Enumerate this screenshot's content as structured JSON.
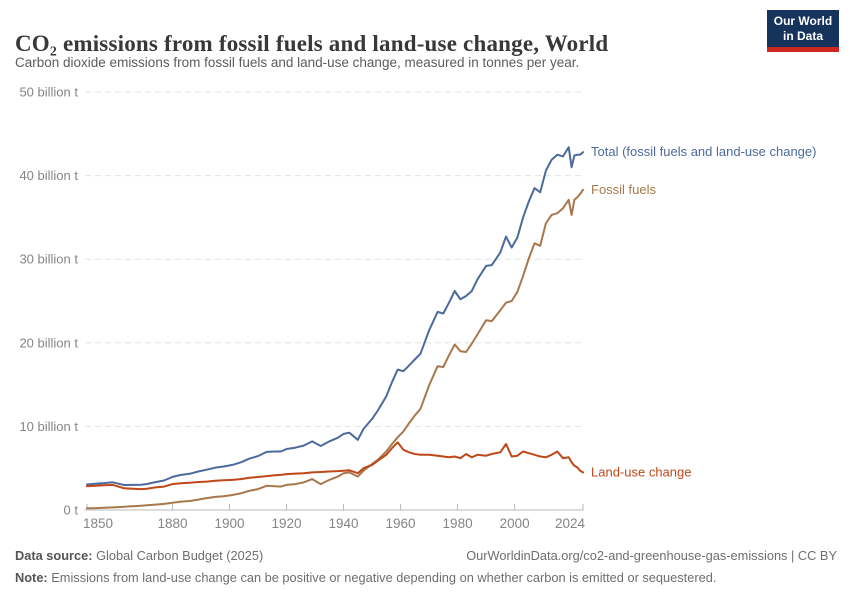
{
  "header": {
    "title": "CO₂ emissions from fossil fuels and land-use change, World",
    "subtitle": "Carbon dioxide emissions from fossil fuels and land-use change, measured in tonnes per year.",
    "logo": {
      "line1": "Our World",
      "line2": "in Data",
      "bg_color": "#15335B",
      "accent_color": "#CE2620"
    }
  },
  "chart_data": {
    "type": "line",
    "title": "CO₂ emissions from fossil fuels and land-use change, World",
    "unit": "billion tonnes of CO₂ per year",
    "xlabel": "",
    "ylabel": "",
    "xlim": [
      1850,
      2024
    ],
    "ylim": [
      0,
      50
    ],
    "grid": "dashed-horizontal",
    "legend_position": "line-end-labels-right",
    "x_ticks": [
      1850,
      1880,
      1900,
      1920,
      1940,
      1960,
      1980,
      2000,
      2024
    ],
    "y_ticks": [
      {
        "value": 0,
        "label": "0 t"
      },
      {
        "value": 10,
        "label": "10 billion t"
      },
      {
        "value": 20,
        "label": "20 billion t"
      },
      {
        "value": 30,
        "label": "30 billion t"
      },
      {
        "value": 40,
        "label": "40 billion t"
      },
      {
        "value": 50,
        "label": "50 billion t"
      }
    ],
    "x": [
      1850,
      1853,
      1856,
      1859,
      1861,
      1863,
      1866,
      1869,
      1871,
      1874,
      1877,
      1880,
      1883,
      1886,
      1889,
      1892,
      1895,
      1898,
      1901,
      1904,
      1907,
      1910,
      1913,
      1916,
      1918,
      1920,
      1923,
      1926,
      1929,
      1932,
      1935,
      1938,
      1940,
      1942,
      1945,
      1947,
      1950,
      1952,
      1955,
      1957,
      1959,
      1961,
      1963,
      1965,
      1967,
      1970,
      1973,
      1975,
      1977,
      1979,
      1981,
      1983,
      1985,
      1987,
      1990,
      1992,
      1995,
      1997,
      1999,
      2001,
      2003,
      2005,
      2007,
      2009,
      2011,
      2013,
      2015,
      2017,
      2019,
      2020,
      2021,
      2022,
      2023,
      2024
    ],
    "series": [
      {
        "name": "Total (fossil fuels and land-use change)",
        "color": "#4C6A9C",
        "values": [
          3.05,
          3.13,
          3.22,
          3.31,
          3.15,
          2.99,
          3.0,
          3.01,
          3.11,
          3.34,
          3.53,
          3.96,
          4.2,
          4.33,
          4.6,
          4.82,
          5.07,
          5.2,
          5.4,
          5.7,
          6.15,
          6.45,
          6.95,
          7.0,
          7.0,
          7.3,
          7.45,
          7.7,
          8.2,
          7.65,
          8.2,
          8.65,
          9.1,
          9.25,
          8.4,
          9.7,
          10.9,
          11.9,
          13.6,
          15.3,
          16.8,
          16.6,
          17.3,
          18.0,
          18.7,
          21.5,
          23.7,
          23.5,
          24.8,
          26.2,
          25.2,
          25.6,
          26.2,
          27.6,
          29.2,
          29.3,
          30.8,
          32.7,
          31.4,
          32.6,
          35.0,
          36.9,
          38.5,
          38.0,
          40.6,
          41.9,
          42.5,
          42.3,
          43.4,
          41.0,
          42.4,
          42.5,
          42.5,
          42.8
        ]
      },
      {
        "name": "Fossil fuels",
        "color": "#A8784C",
        "values": [
          0.2,
          0.23,
          0.27,
          0.31,
          0.35,
          0.39,
          0.45,
          0.51,
          0.56,
          0.64,
          0.73,
          0.86,
          1.0,
          1.08,
          1.25,
          1.42,
          1.57,
          1.65,
          1.8,
          2.0,
          2.3,
          2.5,
          2.9,
          2.85,
          2.8,
          3.0,
          3.1,
          3.3,
          3.7,
          3.1,
          3.6,
          4.0,
          4.4,
          4.5,
          4.0,
          4.7,
          5.5,
          6.0,
          7.0,
          7.9,
          8.7,
          9.4,
          10.4,
          11.3,
          12.1,
          14.9,
          17.2,
          17.1,
          18.5,
          19.8,
          19.0,
          18.9,
          19.9,
          21.0,
          22.7,
          22.6,
          23.9,
          24.8,
          25.0,
          26.1,
          28.0,
          30.1,
          31.9,
          31.6,
          34.3,
          35.3,
          35.5,
          36.1,
          37.1,
          35.3,
          37.1,
          37.4,
          37.8,
          38.3
        ]
      },
      {
        "name": "Land-use change",
        "color": "#BF4718",
        "values": [
          2.85,
          2.9,
          2.95,
          3.0,
          2.8,
          2.6,
          2.55,
          2.5,
          2.55,
          2.7,
          2.8,
          3.1,
          3.2,
          3.25,
          3.35,
          3.4,
          3.5,
          3.55,
          3.6,
          3.7,
          3.85,
          3.95,
          4.05,
          4.15,
          4.2,
          4.3,
          4.35,
          4.4,
          4.5,
          4.55,
          4.6,
          4.65,
          4.7,
          4.75,
          4.4,
          5.0,
          5.4,
          5.9,
          6.6,
          7.4,
          8.1,
          7.2,
          6.9,
          6.7,
          6.6,
          6.6,
          6.5,
          6.4,
          6.3,
          6.4,
          6.2,
          6.7,
          6.3,
          6.6,
          6.5,
          6.7,
          6.9,
          7.9,
          6.4,
          6.5,
          7.0,
          6.8,
          6.6,
          6.4,
          6.3,
          6.6,
          7.0,
          6.2,
          6.3,
          5.7,
          5.3,
          5.1,
          4.7,
          4.5
        ]
      }
    ],
    "style": {
      "grid_color": "#e3e3e3",
      "axis_color": "#b8b8b8",
      "tick_label_color": "#858585"
    }
  },
  "footer": {
    "source_label": "Data source:",
    "source_value": " Global Carbon Budget (2025)",
    "link": "OurWorldinData.org/co2-and-greenhouse-gas-emissions | CC BY",
    "note_label": "Note:",
    "note_text": " Emissions from land-use change can be positive or negative depending on whether carbon is emitted or sequestered."
  }
}
